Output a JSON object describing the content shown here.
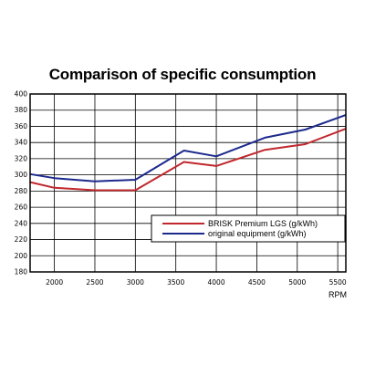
{
  "chart_data": {
    "type": "line",
    "title": "Comparison of specific consumption",
    "xlabel": "RPM",
    "ylabel": "",
    "x": [
      1700,
      2000,
      2500,
      3000,
      3600,
      4000,
      4600,
      5100,
      5600
    ],
    "xticks": [
      "2000",
      "2500",
      "3000",
      "3500",
      "4000",
      "4500",
      "5000",
      "5500"
    ],
    "xtick_values": [
      2000,
      2500,
      3000,
      3500,
      4000,
      4500,
      5000,
      5500
    ],
    "yticks": [
      "400",
      "380",
      "360",
      "340",
      "320",
      "300",
      "280",
      "260",
      "240",
      "220",
      "200",
      "180"
    ],
    "ylim": [
      180,
      400
    ],
    "xlim": [
      1700,
      5600
    ],
    "grid": true,
    "legend_position": "lower-right",
    "series": [
      {
        "name": "BRISK Premium LGS (g/kWh)",
        "color": "#c0282d",
        "values": [
          291,
          284,
          281,
          281,
          316,
          311,
          331,
          338,
          357
        ]
      },
      {
        "name": "original equipment   (g/kWh)",
        "color": "#1c2a8c",
        "values": [
          301,
          296,
          292,
          294,
          330,
          323,
          346,
          356,
          374
        ]
      }
    ]
  }
}
